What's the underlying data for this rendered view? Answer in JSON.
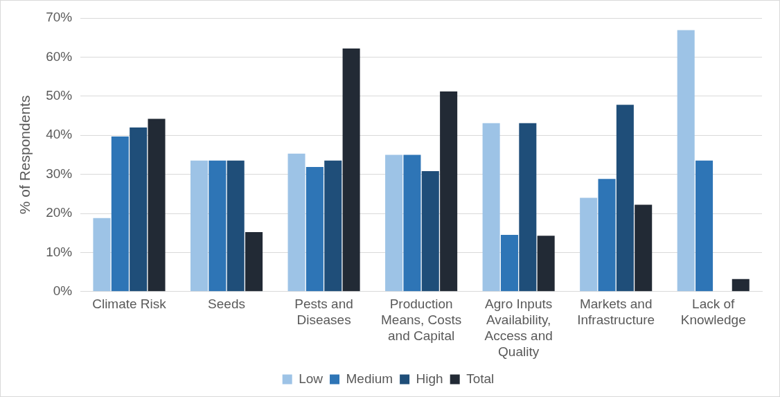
{
  "chart_data": {
    "type": "bar",
    "ylabel": "% of Respondents",
    "categories": [
      "Climate Risk",
      "Seeds",
      "Pests and Diseases",
      "Production Means, Costs and Capital",
      "Agro Inputs Availability, Access and Quality",
      "Markets and Infrastructure",
      "Lack of Knowledge"
    ],
    "series": [
      {
        "name": "Low",
        "color": "#9dc3e6",
        "values": [
          18.8,
          33.5,
          35.3,
          35,
          43.1,
          24,
          66.9
        ]
      },
      {
        "name": "Medium",
        "color": "#2e75b6",
        "values": [
          39.7,
          33.5,
          31.9,
          35,
          14.5,
          28.8,
          33.5
        ]
      },
      {
        "name": "High",
        "color": "#1f4e79",
        "values": [
          42,
          33.5,
          33.5,
          30.8,
          43.1,
          47.8,
          0
        ]
      },
      {
        "name": "Total",
        "color": "#222a35",
        "values": [
          44.2,
          15.2,
          62.2,
          51.2,
          14.3,
          22.2,
          3.2
        ]
      }
    ],
    "ylim": [
      0,
      70
    ],
    "yticks": [
      {
        "value": 0,
        "label": "0%"
      },
      {
        "value": 10,
        "label": "10%"
      },
      {
        "value": 20,
        "label": "20%"
      },
      {
        "value": 30,
        "label": "30%"
      },
      {
        "value": 40,
        "label": "40%"
      },
      {
        "value": 50,
        "label": "50%"
      },
      {
        "value": 60,
        "label": "60%"
      },
      {
        "value": 70,
        "label": "70%"
      }
    ],
    "grid": "y",
    "legend": "bottom"
  }
}
